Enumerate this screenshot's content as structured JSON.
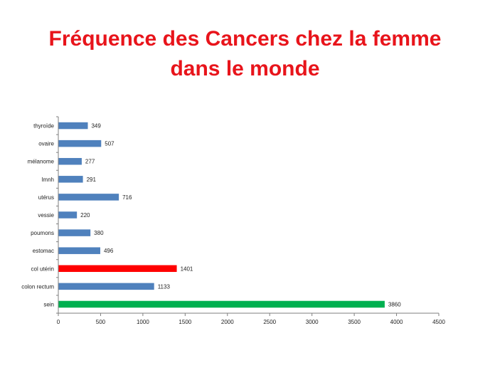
{
  "title_lines": [
    "Fréquence des Cancers chez la femme",
    "dans le monde"
  ],
  "colors": {
    "title": "#e8141b",
    "default_bar": "#4f81bd",
    "highlight_red": "#ff0000",
    "highlight_green": "#00b050",
    "axis": "#7f7f7f"
  },
  "chart_data": {
    "type": "bar",
    "orientation": "horizontal",
    "categories": [
      "thyroïde",
      "ovaire",
      "mélanome",
      "lmnh",
      "utérus",
      "vessie",
      "poumons",
      "estomac",
      "col utérin",
      "colon rectum",
      "sein"
    ],
    "values": [
      349,
      507,
      277,
      291,
      716,
      220,
      380,
      496,
      1401,
      1133,
      3860
    ],
    "bar_colors": [
      "#4f81bd",
      "#4f81bd",
      "#4f81bd",
      "#4f81bd",
      "#4f81bd",
      "#4f81bd",
      "#4f81bd",
      "#4f81bd",
      "#ff0000",
      "#4f81bd",
      "#00b050"
    ],
    "xlim": [
      0,
      4500
    ],
    "xticks": [
      0,
      500,
      1000,
      1500,
      2000,
      2500,
      3000,
      3500,
      4000,
      4500
    ],
    "data_labels": true,
    "grid": false,
    "legend": "none"
  }
}
